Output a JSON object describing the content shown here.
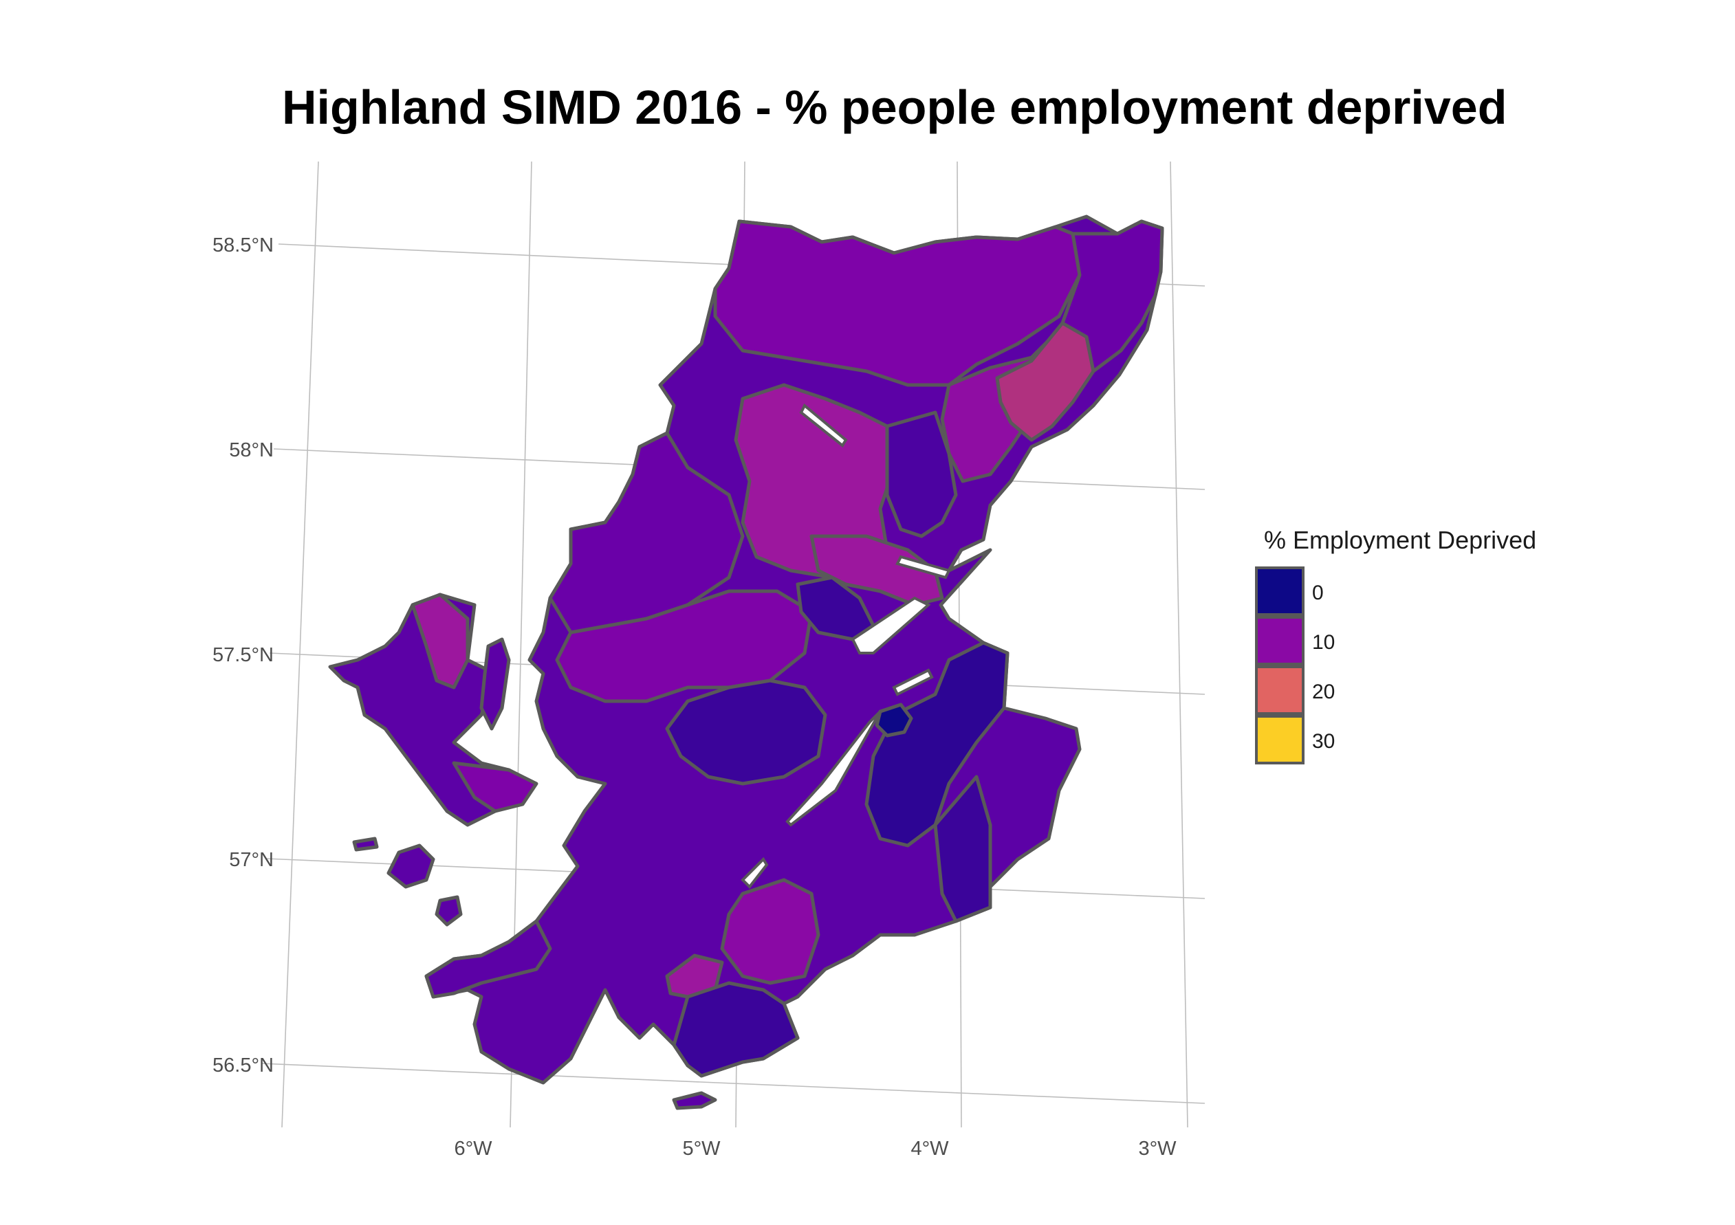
{
  "title": "Highland SIMD 2016 - % people employment deprived",
  "axes": {
    "lat_labels": [
      "58.5°N",
      "58°N",
      "57.5°N",
      "57°N",
      "56.5°N"
    ],
    "lon_labels": [
      "6°W",
      "5°W",
      "4°W",
      "3°W"
    ]
  },
  "legend": {
    "title": "% Employment Deprived",
    "placement": "right",
    "entries": [
      {
        "label": "0",
        "color": "#0d0887"
      },
      {
        "label": "10",
        "color": "#8a09a5"
      },
      {
        "label": "20",
        "color": "#e16462"
      },
      {
        "label": "30",
        "color": "#fcce25"
      }
    ]
  },
  "map": {
    "region": "Highland",
    "fill_scale": "plasma",
    "value_range": [
      0,
      30
    ],
    "colors": {
      "dark": "#3b049a",
      "mid": "#5c01a6",
      "purple": "#7e03a8",
      "magenta": "#9c179e",
      "pink": "#bd3786",
      "border": "#595959"
    }
  }
}
